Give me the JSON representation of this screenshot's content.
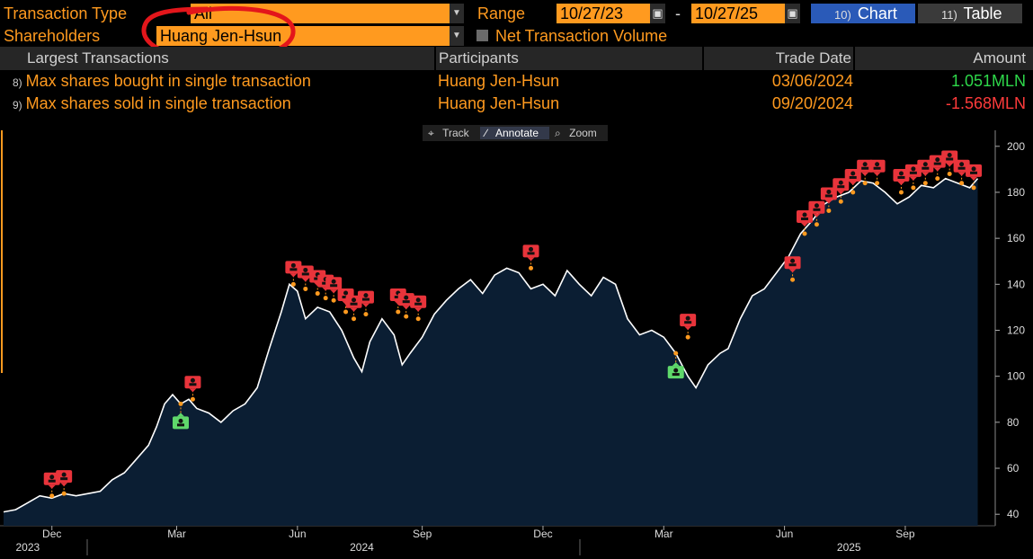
{
  "filters": {
    "transaction_type_label": "Transaction Type",
    "transaction_type_value": "All",
    "shareholders_label": "Shareholders",
    "shareholders_value": "Huang Jen-Hsun",
    "range_label": "Range",
    "range_start": "10/27/23",
    "range_sep": "-",
    "range_end": "10/27/25",
    "net_volume_label": "Net Transaction Volume"
  },
  "view_tabs": [
    {
      "num": "10)",
      "label": "Chart",
      "active": true
    },
    {
      "num": "11)",
      "label": "Table",
      "active": false
    }
  ],
  "table": {
    "headers": [
      "Largest Transactions",
      "Participants",
      "Trade Date",
      "Amount"
    ],
    "rows": [
      {
        "num": "8)",
        "desc": "Max shares bought in single transaction",
        "participant": "Huang Jen-Hsun",
        "date": "03/06/2024",
        "amount": "1.051MLN",
        "amount_color": "#2ed84a"
      },
      {
        "num": "9)",
        "desc": "Max shares sold in single transaction",
        "participant": "Huang Jen-Hsun",
        "date": "09/20/2024",
        "amount": "-1.568MLN",
        "amount_color": "#ff3b3b"
      }
    ]
  },
  "chart_tools": [
    "Track",
    "Annotate",
    "Zoom"
  ],
  "colors": {
    "accent": "#ff9a1f",
    "sell_marker": "#e8343b",
    "buy_marker": "#5fd86b",
    "area": "#0b1e33"
  },
  "chart_data": {
    "type": "area",
    "title": "",
    "ylim": [
      35,
      205
    ],
    "yticks": [
      40,
      60,
      80,
      100,
      120,
      140,
      160,
      180,
      200
    ],
    "x_month_labels": [
      {
        "label": "Dec",
        "month_index": 1.2
      },
      {
        "label": "Mar",
        "month_index": 4.3
      },
      {
        "label": "Jun",
        "month_index": 7.3
      },
      {
        "label": "Sep",
        "month_index": 10.4
      },
      {
        "label": "Dec",
        "month_index": 13.4
      },
      {
        "label": "Mar",
        "month_index": 16.4
      },
      {
        "label": "Jun",
        "month_index": 19.4
      },
      {
        "label": "Sep",
        "month_index": 22.4
      }
    ],
    "x_year_labels": [
      {
        "label": "2023",
        "month_index": 0.6
      },
      {
        "label": "2024",
        "month_index": 8.9
      },
      {
        "label": "2025",
        "month_index": 21.0
      }
    ],
    "series": [
      {
        "name": "Price",
        "points": [
          [
            0.0,
            41
          ],
          [
            0.3,
            42
          ],
          [
            0.6,
            45
          ],
          [
            0.9,
            48
          ],
          [
            1.2,
            47
          ],
          [
            1.5,
            49
          ],
          [
            1.8,
            48
          ],
          [
            2.1,
            49
          ],
          [
            2.4,
            50
          ],
          [
            2.7,
            55
          ],
          [
            3.0,
            58
          ],
          [
            3.3,
            64
          ],
          [
            3.6,
            70
          ],
          [
            3.8,
            78
          ],
          [
            4.0,
            88
          ],
          [
            4.2,
            92
          ],
          [
            4.4,
            88
          ],
          [
            4.6,
            90
          ],
          [
            4.8,
            86
          ],
          [
            5.1,
            84
          ],
          [
            5.4,
            80
          ],
          [
            5.7,
            85
          ],
          [
            6.0,
            88
          ],
          [
            6.3,
            95
          ],
          [
            6.6,
            112
          ],
          [
            6.9,
            128
          ],
          [
            7.1,
            140
          ],
          [
            7.3,
            137
          ],
          [
            7.5,
            125
          ],
          [
            7.8,
            130
          ],
          [
            8.1,
            128
          ],
          [
            8.4,
            120
          ],
          [
            8.7,
            108
          ],
          [
            8.9,
            102
          ],
          [
            9.1,
            115
          ],
          [
            9.4,
            125
          ],
          [
            9.7,
            118
          ],
          [
            9.9,
            105
          ],
          [
            10.1,
            110
          ],
          [
            10.4,
            117
          ],
          [
            10.7,
            127
          ],
          [
            11.0,
            133
          ],
          [
            11.3,
            138
          ],
          [
            11.6,
            142
          ],
          [
            11.9,
            136
          ],
          [
            12.2,
            144
          ],
          [
            12.5,
            147
          ],
          [
            12.8,
            145
          ],
          [
            13.1,
            138
          ],
          [
            13.4,
            140
          ],
          [
            13.7,
            135
          ],
          [
            14.0,
            146
          ],
          [
            14.3,
            140
          ],
          [
            14.6,
            135
          ],
          [
            14.9,
            143
          ],
          [
            15.2,
            140
          ],
          [
            15.5,
            125
          ],
          [
            15.8,
            118
          ],
          [
            16.1,
            120
          ],
          [
            16.4,
            117
          ],
          [
            16.7,
            110
          ],
          [
            17.0,
            100
          ],
          [
            17.2,
            95
          ],
          [
            17.5,
            105
          ],
          [
            17.8,
            110
          ],
          [
            18.0,
            112
          ],
          [
            18.3,
            125
          ],
          [
            18.6,
            135
          ],
          [
            18.9,
            138
          ],
          [
            19.2,
            145
          ],
          [
            19.5,
            152
          ],
          [
            19.8,
            162
          ],
          [
            20.1,
            168
          ],
          [
            20.4,
            175
          ],
          [
            20.7,
            178
          ],
          [
            21.0,
            180
          ],
          [
            21.3,
            185
          ],
          [
            21.6,
            184
          ],
          [
            21.9,
            180
          ],
          [
            22.2,
            175
          ],
          [
            22.5,
            178
          ],
          [
            22.8,
            183
          ],
          [
            23.1,
            182
          ],
          [
            23.4,
            186
          ],
          [
            23.7,
            184
          ],
          [
            24.0,
            182
          ],
          [
            24.2,
            186
          ]
        ]
      }
    ],
    "transaction_markers": [
      {
        "type": "sell",
        "month_index": 1.2,
        "price": 48
      },
      {
        "type": "sell",
        "month_index": 1.5,
        "price": 49
      },
      {
        "type": "buy",
        "month_index": 4.4,
        "price": 88
      },
      {
        "type": "sell",
        "month_index": 4.7,
        "price": 90
      },
      {
        "type": "sell",
        "month_index": 7.2,
        "price": 140
      },
      {
        "type": "sell",
        "month_index": 7.5,
        "price": 138
      },
      {
        "type": "sell",
        "month_index": 7.8,
        "price": 136
      },
      {
        "type": "sell",
        "month_index": 8.0,
        "price": 134
      },
      {
        "type": "sell",
        "month_index": 8.2,
        "price": 133
      },
      {
        "type": "sell",
        "month_index": 8.5,
        "price": 128
      },
      {
        "type": "sell",
        "month_index": 8.7,
        "price": 125
      },
      {
        "type": "sell",
        "month_index": 9.0,
        "price": 127
      },
      {
        "type": "sell",
        "month_index": 9.8,
        "price": 128
      },
      {
        "type": "sell",
        "month_index": 10.0,
        "price": 126
      },
      {
        "type": "sell",
        "month_index": 10.3,
        "price": 125
      },
      {
        "type": "sell",
        "month_index": 13.1,
        "price": 147
      },
      {
        "type": "buy",
        "month_index": 16.7,
        "price": 110
      },
      {
        "type": "sell",
        "month_index": 17.0,
        "price": 117
      },
      {
        "type": "sell",
        "month_index": 19.6,
        "price": 142
      },
      {
        "type": "sell",
        "month_index": 19.9,
        "price": 162
      },
      {
        "type": "sell",
        "month_index": 20.2,
        "price": 166
      },
      {
        "type": "sell",
        "month_index": 20.5,
        "price": 172
      },
      {
        "type": "sell",
        "month_index": 20.8,
        "price": 176
      },
      {
        "type": "sell",
        "month_index": 21.1,
        "price": 180
      },
      {
        "type": "sell",
        "month_index": 21.4,
        "price": 184
      },
      {
        "type": "sell",
        "month_index": 21.7,
        "price": 184
      },
      {
        "type": "sell",
        "month_index": 22.3,
        "price": 180
      },
      {
        "type": "sell",
        "month_index": 22.6,
        "price": 182
      },
      {
        "type": "sell",
        "month_index": 22.9,
        "price": 184
      },
      {
        "type": "sell",
        "month_index": 23.2,
        "price": 186
      },
      {
        "type": "sell",
        "month_index": 23.5,
        "price": 188
      },
      {
        "type": "sell",
        "month_index": 23.8,
        "price": 184
      },
      {
        "type": "sell",
        "month_index": 24.1,
        "price": 182
      }
    ]
  }
}
